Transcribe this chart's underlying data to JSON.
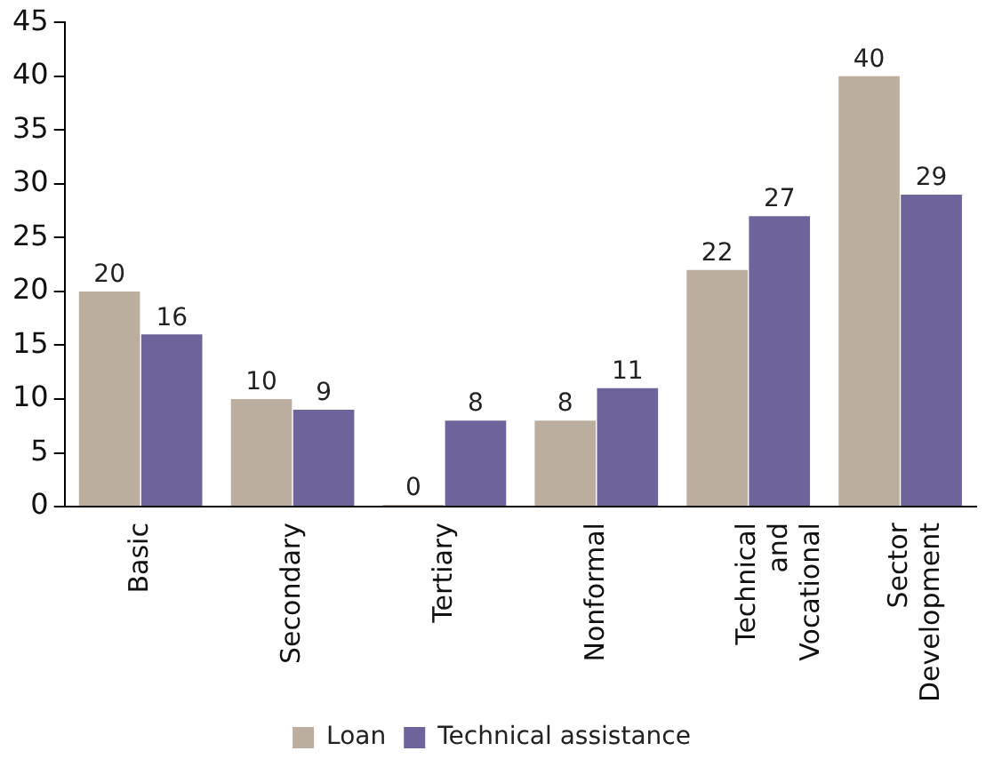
{
  "chart_data": {
    "type": "bar",
    "categories": [
      "Basic",
      "Secondary",
      "Tertiary",
      "Nonformal",
      "Technical and Vocational",
      "Sector Development"
    ],
    "series": [
      {
        "name": "Loan",
        "color": "#bcae9e",
        "values": [
          20,
          10,
          0,
          8,
          22,
          40
        ]
      },
      {
        "name": "Technical assistance",
        "color": "#6f639c",
        "values": [
          16,
          9,
          8,
          11,
          27,
          29
        ]
      }
    ],
    "ylim": [
      0,
      45
    ],
    "yticks": [
      0,
      5,
      10,
      15,
      20,
      25,
      30,
      35,
      40,
      45
    ],
    "grid": false,
    "legend": "bottom",
    "data_labels": true
  }
}
